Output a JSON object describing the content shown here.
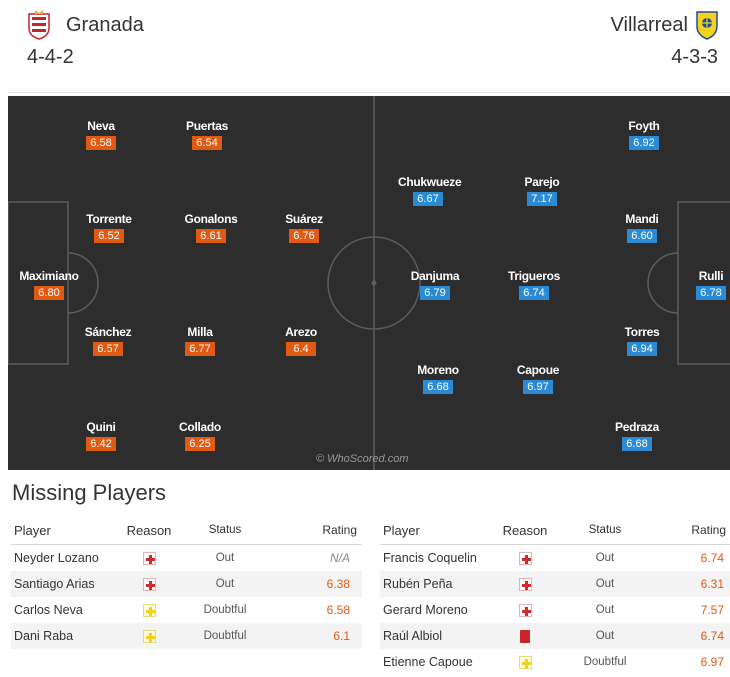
{
  "home": {
    "name": "Granada",
    "formation": "4-4-2",
    "players": [
      {
        "name": "Neva",
        "rating": "6.58"
      },
      {
        "name": "Puertas",
        "rating": "6.54"
      },
      {
        "name": "Torrente",
        "rating": "6.52"
      },
      {
        "name": "Gonalons",
        "rating": "6.61"
      },
      {
        "name": "Suárez",
        "rating": "6.76"
      },
      {
        "name": "Maximiano",
        "rating": "6.80"
      },
      {
        "name": "Sánchez",
        "rating": "6.57"
      },
      {
        "name": "Milla",
        "rating": "6.77"
      },
      {
        "name": "Arezo",
        "rating": "6.4"
      },
      {
        "name": "Quini",
        "rating": "6.42"
      },
      {
        "name": "Collado",
        "rating": "6.25"
      }
    ]
  },
  "away": {
    "name": "Villarreal",
    "formation": "4-3-3",
    "players": [
      {
        "name": "Foyth",
        "rating": "6.92"
      },
      {
        "name": "Chukwueze",
        "rating": "6.67"
      },
      {
        "name": "Parejo",
        "rating": "7.17"
      },
      {
        "name": "Mandi",
        "rating": "6.60"
      },
      {
        "name": "Danjuma",
        "rating": "6.79"
      },
      {
        "name": "Trigueros",
        "rating": "6.74"
      },
      {
        "name": "Rulli",
        "rating": "6.78"
      },
      {
        "name": "Torres",
        "rating": "6.94"
      },
      {
        "name": "Moreno",
        "rating": "6.68"
      },
      {
        "name": "Capoue",
        "rating": "6.97"
      },
      {
        "name": "Pedraza",
        "rating": "6.68"
      }
    ]
  },
  "watermark": "© WhoScored.com",
  "missing": {
    "title": "Missing Players",
    "columns": {
      "player": "Player",
      "reason": "Reason",
      "status": "Status",
      "rating": "Rating"
    },
    "home": [
      {
        "player": "Neyder Lozano",
        "reason": "injury",
        "status": "Out",
        "rating": "N/A"
      },
      {
        "player": "Santiago Arias",
        "reason": "injury",
        "status": "Out",
        "rating": "6.38"
      },
      {
        "player": "Carlos Neva",
        "reason": "doubtful",
        "status": "Doubtful",
        "rating": "6.58"
      },
      {
        "player": "Dani Raba",
        "reason": "doubtful",
        "status": "Doubtful",
        "rating": "6.1"
      }
    ],
    "away": [
      {
        "player": "Francis Coquelin",
        "reason": "injury",
        "status": "Out",
        "rating": "6.74"
      },
      {
        "player": "Rubén Peña",
        "reason": "injury",
        "status": "Out",
        "rating": "6.31"
      },
      {
        "player": "Gerard Moreno",
        "reason": "injury",
        "status": "Out",
        "rating": "7.57"
      },
      {
        "player": "Raúl Albiol",
        "reason": "red-card",
        "status": "Out",
        "rating": "6.74"
      },
      {
        "player": "Etienne Capoue",
        "reason": "doubtful",
        "status": "Doubtful",
        "rating": "6.97"
      }
    ]
  },
  "colors": {
    "home_rating": "#e05a14",
    "away_rating": "#2a8ad4",
    "pitch": "#2d2d2d"
  }
}
